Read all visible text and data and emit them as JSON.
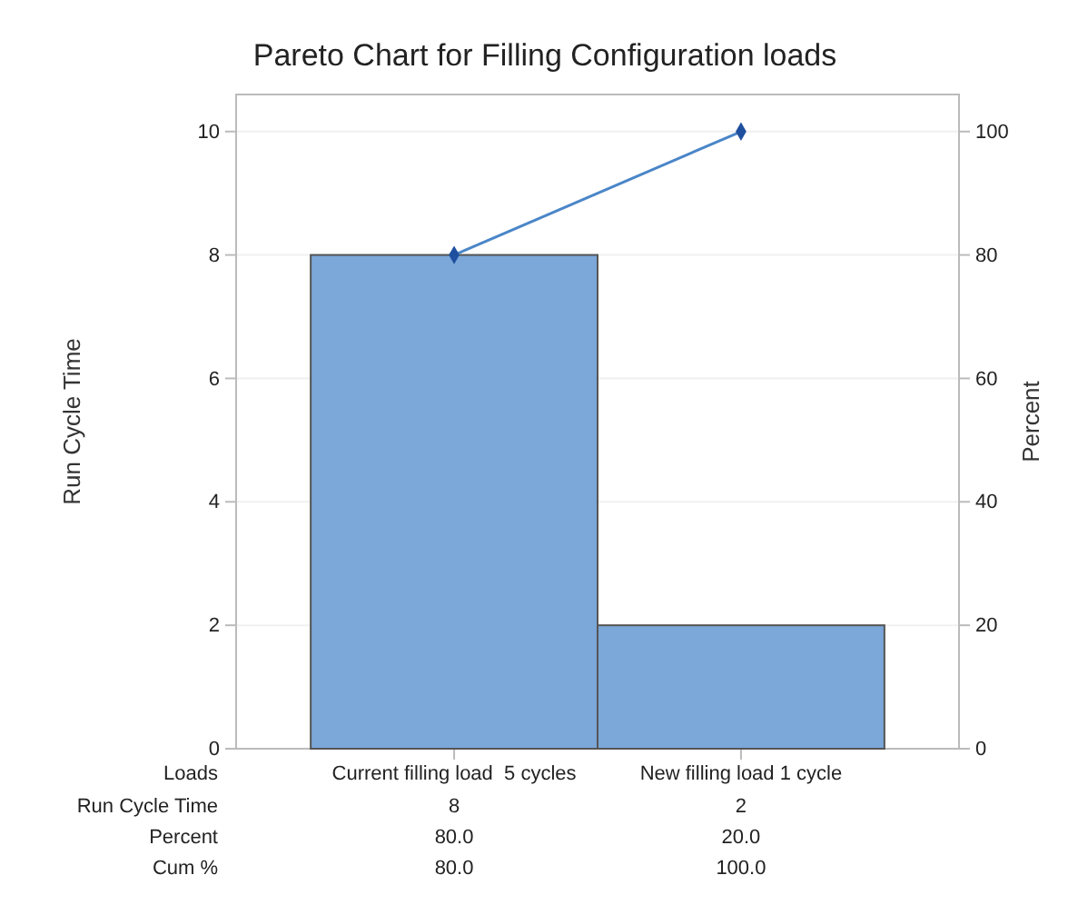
{
  "chart_data": {
    "type": "bar",
    "title": "Pareto Chart for Filling Configuration loads",
    "xlabel": "Loads",
    "ylabel": "Run Cycle Time",
    "y2label": "Percent",
    "categories": [
      "Current filling load  5 cycles",
      "New filling load 1 cycle"
    ],
    "series": [
      {
        "color": "#7ba7d9",
        "values": [
          8,
          2
        ]
      },
      {
        "type": "line",
        "axis": "y2",
        "color": "#4a86c8",
        "values": [
          80,
          100
        ],
        "marker": "diamond"
      }
    ],
    "annotations": [
      "Run Cycle Time",
      "8",
      "2",
      "Percent",
      "80.0",
      "20.0",
      "Cum %",
      "80.0",
      "100.0"
    ],
    "ylim": [
      0,
      10.6
    ],
    "yticks": [
      0,
      2,
      4,
      6,
      8,
      10
    ],
    "y2lim": [
      0,
      106
    ],
    "y2ticks": [
      0,
      20,
      40,
      60,
      80,
      100
    ],
    "grid": "y",
    "legend": false
  }
}
